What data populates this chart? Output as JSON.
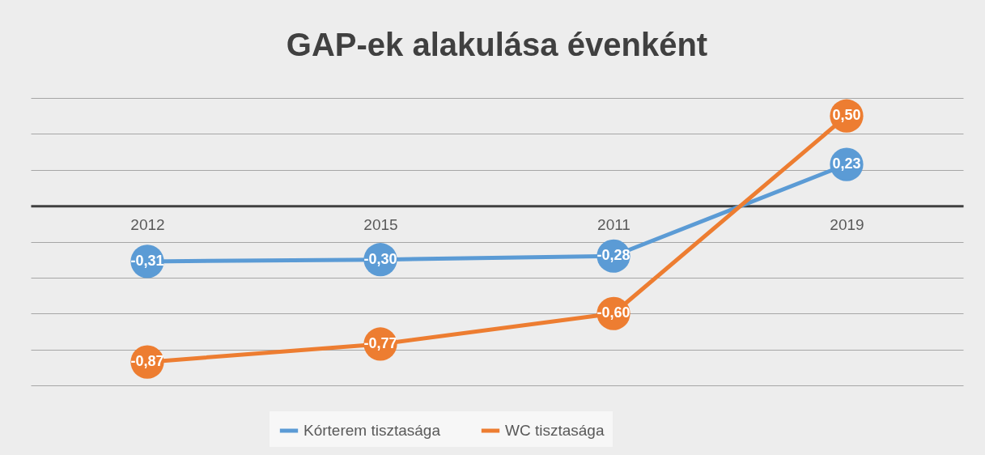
{
  "chart_data": {
    "type": "line",
    "title": "GAP-ek alakulása évenként",
    "categories": [
      "2012",
      "2015",
      "2011",
      "2019"
    ],
    "series": [
      {
        "name": "Kórterem tisztasága",
        "color": "#5b9bd5",
        "values": [
          -0.31,
          -0.3,
          -0.28,
          0.23
        ],
        "value_labels": [
          "-0,31",
          "-0,30",
          "-0,28",
          "0,23"
        ]
      },
      {
        "name": "WC tisztasága",
        "color": "#ed7d31",
        "values": [
          -0.87,
          -0.77,
          -0.6,
          0.5
        ],
        "value_labels": [
          "-0,87",
          "-0,77",
          "-0,60",
          "0,50"
        ]
      }
    ],
    "ylim": [
      -1.0,
      0.6
    ],
    "yticks": [
      -1.0,
      -0.8,
      -0.6,
      -0.4,
      -0.2,
      0,
      0.2,
      0.4,
      0.6
    ],
    "tick_labels": "x",
    "grid": "y",
    "legend": "bottom",
    "marker": "circle",
    "line_style": "solid"
  }
}
